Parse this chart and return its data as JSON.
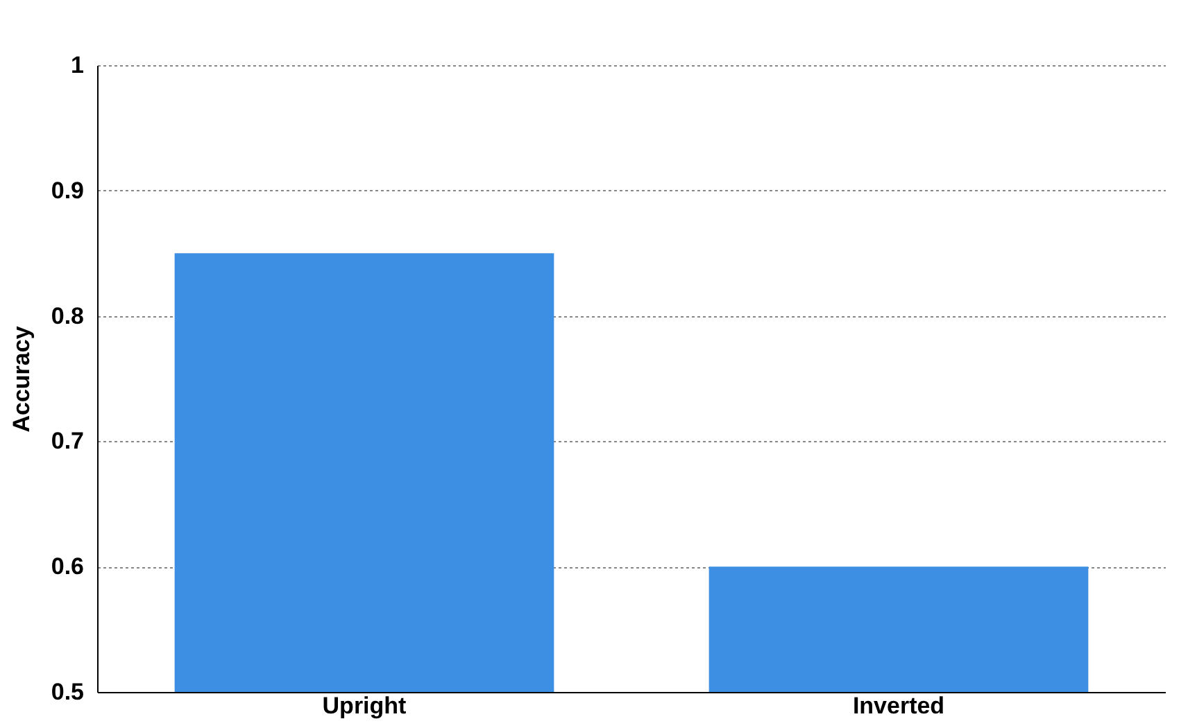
{
  "chart_data": {
    "type": "bar",
    "ylabel": "Accuracy",
    "categories": [
      "Upright",
      "Inverted"
    ],
    "values": [
      0.85,
      0.6
    ],
    "color": "#3d8fe3",
    "ylim": [
      0.5,
      1
    ],
    "yticks": [
      0.5,
      0.6,
      0.7,
      0.8,
      0.9,
      1
    ],
    "grid": "y"
  }
}
